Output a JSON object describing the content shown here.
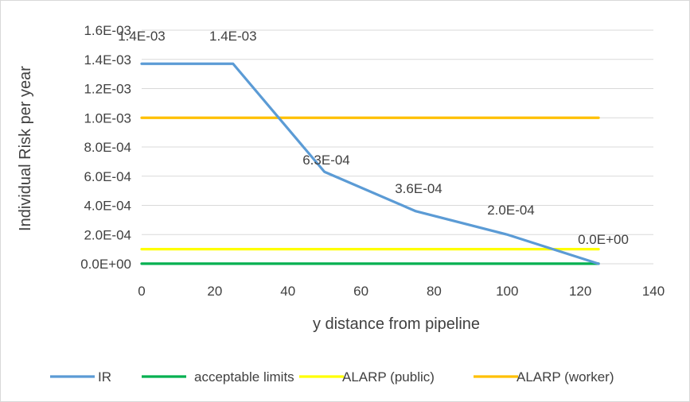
{
  "chart_data": {
    "type": "line",
    "title": "",
    "xlabel": "y distance from pipeline",
    "ylabel": "Individual Risk per year",
    "xlim": [
      0,
      140
    ],
    "ylim": [
      0,
      0.0016
    ],
    "x_ticks": [
      0,
      20,
      40,
      60,
      80,
      100,
      120,
      140
    ],
    "x_tick_labels": [
      "0",
      "20",
      "40",
      "60",
      "80",
      "100",
      "120",
      "140"
    ],
    "y_ticks": [
      0,
      0.0002,
      0.0004,
      0.0006,
      0.0008,
      0.001,
      0.0012,
      0.0014,
      0.0016
    ],
    "y_tick_labels": [
      "0.0E+00",
      "2.0E-04",
      "4.0E-04",
      "6.0E-04",
      "8.0E-04",
      "1.0E-03",
      "1.2E-03",
      "1.4E-03",
      "1.6E-03"
    ],
    "grid": "horizontal",
    "legend_position": "bottom",
    "series": [
      {
        "name": "IR",
        "color": "#5b9bd5",
        "x": [
          0,
          25,
          50,
          75,
          100,
          125
        ],
        "y": [
          0.00137,
          0.00137,
          0.00063,
          0.00036,
          0.0002,
          0.0
        ],
        "labels": [
          "1.4E-03",
          "1.4E-03",
          "6.3E-04",
          "3.6E-04",
          "2.0E-04",
          "0.0E+00"
        ]
      },
      {
        "name": "acceptable limits",
        "color": "#00b050",
        "x": [
          0,
          125
        ],
        "y": [
          5e-07,
          5e-07
        ]
      },
      {
        "name": "ALARP (public)",
        "color": "#ffff00",
        "x": [
          0,
          125
        ],
        "y": [
          0.0001,
          0.0001
        ]
      },
      {
        "name": "ALARP (worker)",
        "color": "#ffc000",
        "x": [
          0,
          125
        ],
        "y": [
          0.001,
          0.001
        ]
      }
    ]
  }
}
